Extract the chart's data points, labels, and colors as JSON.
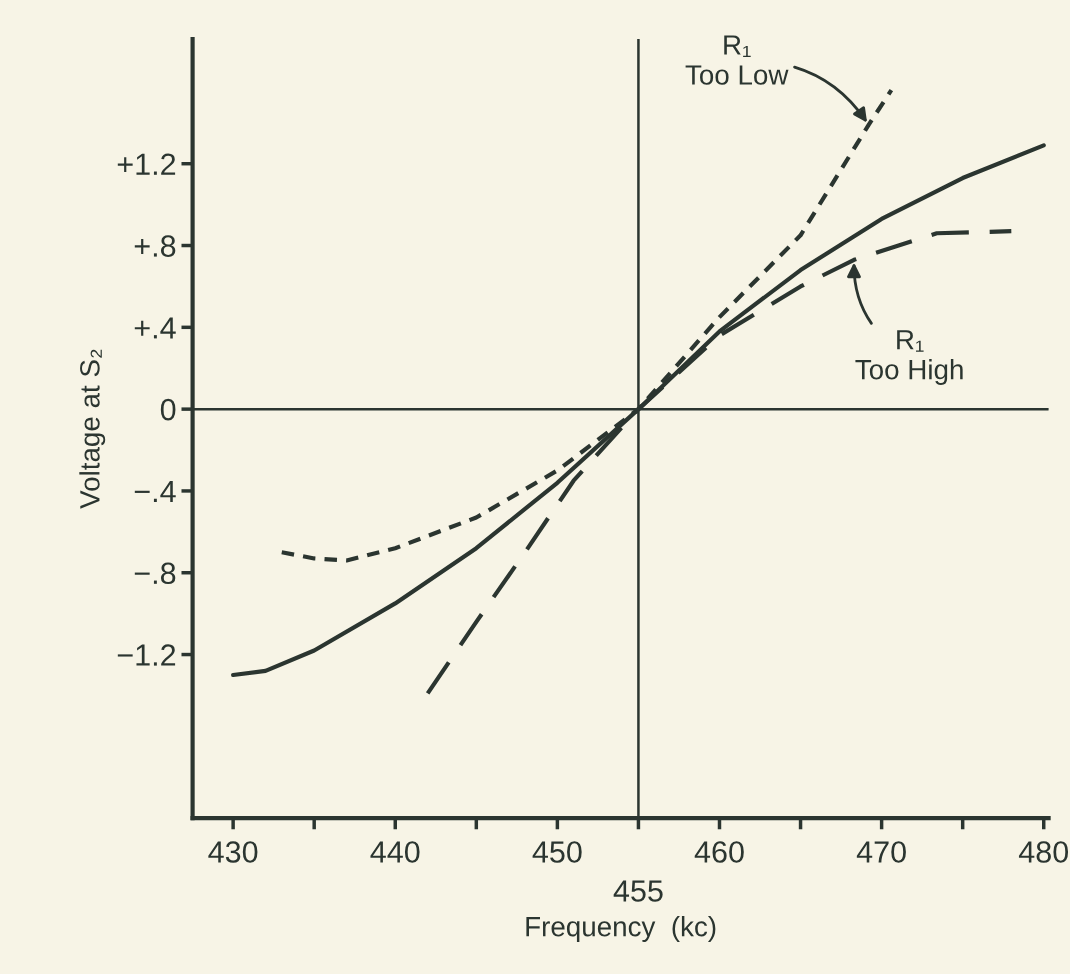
{
  "chart_data": {
    "type": "line",
    "xlabel": "Frequency  (kc)",
    "ylabel": "Voltage at S₂",
    "xlim": [
      427.5,
      480.3
    ],
    "ylim": [
      -2.0,
      1.81
    ],
    "xticks": [
      430,
      {
        "value": 435,
        "label": null
      },
      440,
      {
        "value": 445,
        "label": null
      },
      450,
      {
        "value": 455,
        "label": null
      },
      460,
      {
        "value": 465,
        "label": null
      },
      470,
      {
        "value": 475,
        "label": null
      },
      480
    ],
    "yticks": [
      {
        "value": 1.2,
        "label": "+1.2"
      },
      {
        "value": 0.8,
        "label": "+.8"
      },
      {
        "value": 0.4,
        "label": "+.4"
      },
      0,
      {
        "value": -0.4,
        "label": "−.4"
      },
      {
        "value": -0.8,
        "label": "−.8"
      },
      {
        "value": -1.2,
        "label": "−1.2"
      }
    ],
    "grid": false,
    "legend": false,
    "ref_lines": [
      {
        "axis": "x",
        "value": 455,
        "label": "455",
        "color": "#2b3530"
      },
      {
        "axis": "y",
        "value": 0,
        "color": "#2b3530"
      }
    ],
    "series": [
      {
        "color": "#2b3530",
        "line_style": "solid",
        "x": [
          430,
          432,
          435,
          440,
          445,
          450,
          455,
          460,
          465,
          470,
          475,
          480
        ],
        "values": [
          -1.3,
          -1.28,
          -1.18,
          -0.95,
          -0.68,
          -0.36,
          0,
          0.38,
          0.68,
          0.93,
          1.13,
          1.29
        ]
      },
      {
        "color": "#2b3530",
        "line_style": "dotted",
        "x": [
          433,
          435,
          437,
          440,
          445,
          450,
          455,
          460,
          465,
          469.2,
          470.6
        ],
        "values": [
          -0.7,
          -0.73,
          -0.74,
          -0.68,
          -0.53,
          -0.3,
          0,
          0.45,
          0.85,
          1.39,
          1.56
        ]
      },
      {
        "color": "#2b3530",
        "line_style": "dashed",
        "x": [
          442,
          445,
          448,
          451,
          455,
          460,
          465,
          468.3,
          473.4,
          478.0
        ],
        "values": [
          -1.39,
          -1.04,
          -0.7,
          -0.35,
          0,
          0.36,
          0.6,
          0.73,
          0.86,
          0.87
        ]
      }
    ],
    "annotations": [
      {
        "text": "R₁\nToo Low",
        "x": 469.2,
        "y": 1.39
      },
      {
        "text": "R₁\nToo High",
        "x": 468.3,
        "y": 0.73
      }
    ]
  }
}
